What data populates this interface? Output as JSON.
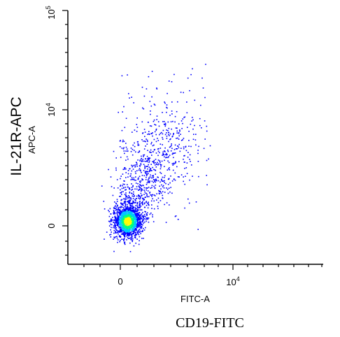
{
  "chart_data": {
    "type": "scatter",
    "style": "density-dot-plot",
    "colormap": [
      "#0000ff",
      "#00c8ff",
      "#00ff80",
      "#ffff00"
    ],
    "x_axis": {
      "label": "FITC-A",
      "scale": "biexponential",
      "tick_labels": [
        "0",
        "10^4"
      ]
    },
    "y_axis": {
      "label": "APC-A",
      "scale": "biexponential",
      "tick_labels": [
        "0",
        "10^4",
        "10^5"
      ]
    },
    "outer_xlabel": "CD19-FITC",
    "outer_ylabel": "IL-21R-APC",
    "populations": [
      {
        "x_center": 800,
        "y_center": 200,
        "spread": "tight, high density core"
      },
      {
        "x_center": 3000,
        "y_center": 3000,
        "spread": "diffuse tail toward upper right"
      }
    ],
    "grid": false
  }
}
